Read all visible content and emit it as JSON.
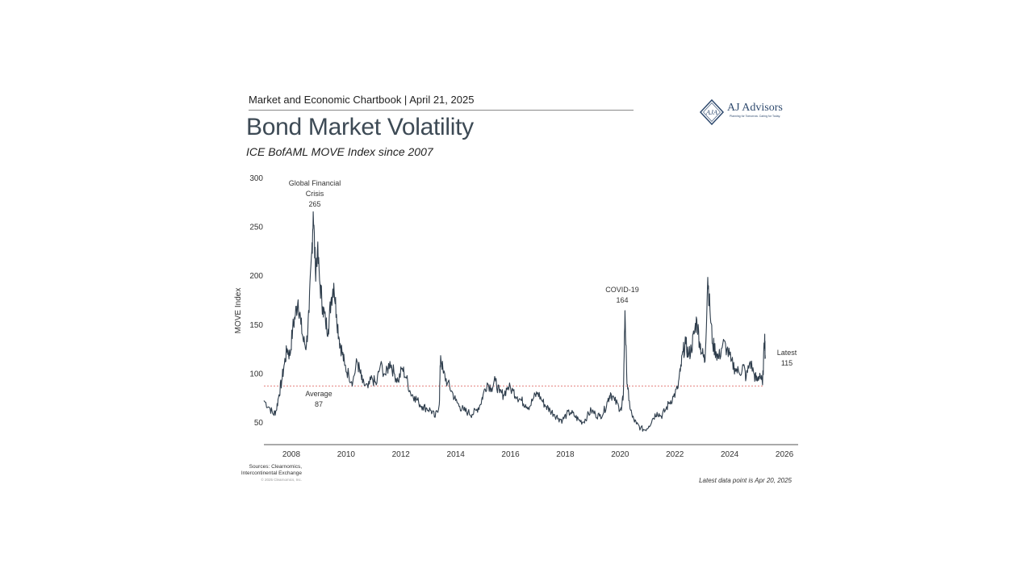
{
  "header": {
    "chartbook": "Market and Economic Chartbook | April 21, 2025",
    "title": "Bond Market Volatility",
    "subtitle": "ICE BofAML MOVE Index since 2007"
  },
  "logo": {
    "monogram": "AJA",
    "name": "AJ Advisors",
    "tagline": "Planning for Tomorrow. Caring for Today.",
    "color": "#2f4a6e"
  },
  "footer": {
    "sources": "Sources: Clearnomics, Intercontinental Exchange",
    "copyright": "© 2025 Clearnomics, Inc.",
    "latest_note": "Latest data point is Apr 20, 2025"
  },
  "chart_data": {
    "type": "line",
    "ylabel": "MOVE Index",
    "xlabel": "",
    "xlim": [
      2007.0,
      2026.5
    ],
    "ylim": [
      27,
      300
    ],
    "y_ticks": [
      50,
      100,
      150,
      200,
      250,
      300
    ],
    "x_ticks": [
      2008,
      2010,
      2012,
      2014,
      2016,
      2018,
      2020,
      2022,
      2024,
      2026
    ],
    "line_color": "#2e3d4c",
    "average_line": {
      "value": 87,
      "style": "dashed",
      "color": "#d9534f"
    },
    "annotations": [
      {
        "label_lines": [
          "Global Financial",
          "Crisis",
          "265"
        ],
        "x": 2008.8,
        "y": 265
      },
      {
        "label_lines": [
          "COVID-19",
          "164"
        ],
        "x": 2020.2,
        "y": 164
      },
      {
        "label_lines": [
          "Average",
          "87"
        ],
        "x": 2008.5,
        "y": 87
      },
      {
        "label_lines": [
          "Latest",
          "115"
        ],
        "x": 2025.3,
        "y": 115
      }
    ],
    "series": [
      {
        "values": [
          [
            2007.0,
            72
          ],
          [
            2007.2,
            65
          ],
          [
            2007.35,
            58
          ],
          [
            2007.45,
            62
          ],
          [
            2007.55,
            78
          ],
          [
            2007.65,
            92
          ],
          [
            2007.75,
            110
          ],
          [
            2007.85,
            125
          ],
          [
            2007.95,
            118
          ],
          [
            2008.05,
            145
          ],
          [
            2008.15,
            160
          ],
          [
            2008.25,
            175
          ],
          [
            2008.35,
            150
          ],
          [
            2008.45,
            132
          ],
          [
            2008.55,
            128
          ],
          [
            2008.65,
            162
          ],
          [
            2008.75,
            225
          ],
          [
            2008.8,
            265
          ],
          [
            2008.88,
            205
          ],
          [
            2008.95,
            225
          ],
          [
            2009.05,
            190
          ],
          [
            2009.15,
            168
          ],
          [
            2009.25,
            152
          ],
          [
            2009.35,
            145
          ],
          [
            2009.45,
            175
          ],
          [
            2009.55,
            192
          ],
          [
            2009.65,
            160
          ],
          [
            2009.75,
            135
          ],
          [
            2009.85,
            122
          ],
          [
            2009.95,
            108
          ],
          [
            2010.1,
            98
          ],
          [
            2010.25,
            92
          ],
          [
            2010.4,
            112
          ],
          [
            2010.5,
            102
          ],
          [
            2010.6,
            90
          ],
          [
            2010.8,
            85
          ],
          [
            2010.95,
            95
          ],
          [
            2011.1,
            88
          ],
          [
            2011.25,
            108
          ],
          [
            2011.45,
            98
          ],
          [
            2011.6,
            112
          ],
          [
            2011.75,
            100
          ],
          [
            2011.9,
            92
          ],
          [
            2012.05,
            105
          ],
          [
            2012.2,
            95
          ],
          [
            2012.35,
            80
          ],
          [
            2012.5,
            76
          ],
          [
            2012.65,
            70
          ],
          [
            2012.8,
            66
          ],
          [
            2012.95,
            64
          ],
          [
            2013.1,
            62
          ],
          [
            2013.25,
            55
          ],
          [
            2013.4,
            68
          ],
          [
            2013.45,
            118
          ],
          [
            2013.55,
            100
          ],
          [
            2013.7,
            90
          ],
          [
            2013.85,
            82
          ],
          [
            2014.0,
            72
          ],
          [
            2014.15,
            66
          ],
          [
            2014.3,
            62
          ],
          [
            2014.45,
            60
          ],
          [
            2014.6,
            58
          ],
          [
            2014.75,
            62
          ],
          [
            2014.9,
            68
          ],
          [
            2015.0,
            78
          ],
          [
            2015.15,
            90
          ],
          [
            2015.3,
            85
          ],
          [
            2015.45,
            92
          ],
          [
            2015.6,
            80
          ],
          [
            2015.75,
            78
          ],
          [
            2015.9,
            86
          ],
          [
            2016.1,
            82
          ],
          [
            2016.25,
            76
          ],
          [
            2016.4,
            72
          ],
          [
            2016.55,
            68
          ],
          [
            2016.7,
            66
          ],
          [
            2016.85,
            75
          ],
          [
            2017.0,
            80
          ],
          [
            2017.15,
            72
          ],
          [
            2017.3,
            66
          ],
          [
            2017.45,
            62
          ],
          [
            2017.6,
            58
          ],
          [
            2017.75,
            54
          ],
          [
            2017.9,
            52
          ],
          [
            2018.05,
            58
          ],
          [
            2018.2,
            60
          ],
          [
            2018.35,
            56
          ],
          [
            2018.5,
            52
          ],
          [
            2018.65,
            50
          ],
          [
            2018.8,
            56
          ],
          [
            2018.95,
            62
          ],
          [
            2019.1,
            58
          ],
          [
            2019.25,
            56
          ],
          [
            2019.4,
            60
          ],
          [
            2019.55,
            72
          ],
          [
            2019.65,
            80
          ],
          [
            2019.8,
            72
          ],
          [
            2019.95,
            66
          ],
          [
            2020.05,
            62
          ],
          [
            2020.12,
            78
          ],
          [
            2020.18,
            164
          ],
          [
            2020.24,
            100
          ],
          [
            2020.32,
            72
          ],
          [
            2020.45,
            55
          ],
          [
            2020.6,
            48
          ],
          [
            2020.75,
            44
          ],
          [
            2020.9,
            42
          ],
          [
            2021.05,
            46
          ],
          [
            2021.2,
            54
          ],
          [
            2021.35,
            60
          ],
          [
            2021.5,
            56
          ],
          [
            2021.65,
            62
          ],
          [
            2021.8,
            70
          ],
          [
            2021.95,
            76
          ],
          [
            2022.1,
            84
          ],
          [
            2022.2,
            102
          ],
          [
            2022.3,
            122
          ],
          [
            2022.4,
            130
          ],
          [
            2022.5,
            118
          ],
          [
            2022.6,
            125
          ],
          [
            2022.7,
            140
          ],
          [
            2022.8,
            155
          ],
          [
            2022.9,
            132
          ],
          [
            2023.0,
            120
          ],
          [
            2023.1,
            112
          ],
          [
            2023.2,
            198
          ],
          [
            2023.28,
            165
          ],
          [
            2023.38,
            130
          ],
          [
            2023.5,
            122
          ],
          [
            2023.6,
            115
          ],
          [
            2023.75,
            130
          ],
          [
            2023.9,
            125
          ],
          [
            2024.05,
            112
          ],
          [
            2024.2,
            105
          ],
          [
            2024.35,
            100
          ],
          [
            2024.5,
            108
          ],
          [
            2024.6,
            95
          ],
          [
            2024.75,
            112
          ],
          [
            2024.9,
            98
          ],
          [
            2025.0,
            92
          ],
          [
            2025.1,
            100
          ],
          [
            2025.2,
            88
          ],
          [
            2025.28,
            140
          ],
          [
            2025.3,
            115
          ]
        ]
      }
    ]
  }
}
